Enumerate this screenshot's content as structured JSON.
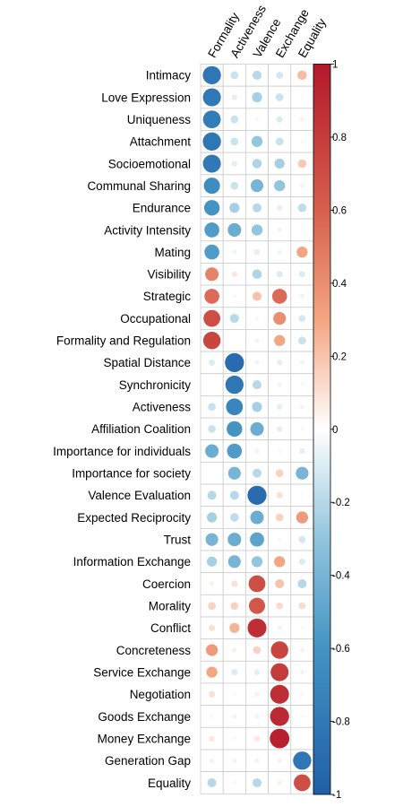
{
  "chart_data": {
    "type": "heatmap",
    "subtype": "correlation-circle",
    "title": "",
    "columns": [
      "Formality",
      "Activeness",
      "Valence",
      "Exchange",
      "Equality"
    ],
    "rows": [
      "Intimacy",
      "Love Expression",
      "Uniqueness",
      "Attachment",
      "Socioemotional",
      "Communal Sharing",
      "Endurance",
      "Activity Intensity",
      "Mating",
      "Visibility",
      "Strategic",
      "Occupational",
      "Formality and Regulation",
      "Spatial Distance",
      "Synchronicity",
      "Activeness",
      "Affiliation Coalition",
      "Importance for individuals",
      "Importance for society",
      "Valence Evaluation",
      "Expected Reciprocity",
      "Trust",
      "Information Exchange",
      "Coercion",
      "Morality",
      "Conflict",
      "Concreteness",
      "Service Exchange",
      "Negotiation",
      "Goods Exchange",
      "Money Exchange",
      "Generation Gap",
      "Equality"
    ],
    "values": [
      [
        -0.82,
        -0.15,
        -0.2,
        -0.12,
        0.22
      ],
      [
        -0.8,
        -0.08,
        -0.25,
        -0.15,
        0.02
      ],
      [
        -0.78,
        -0.15,
        -0.03,
        -0.1,
        0.05
      ],
      [
        -0.82,
        -0.15,
        -0.3,
        -0.15,
        0.03
      ],
      [
        -0.8,
        -0.08,
        -0.22,
        -0.25,
        0.18
      ],
      [
        -0.65,
        -0.15,
        -0.4,
        -0.3,
        -0.05
      ],
      [
        -0.6,
        -0.25,
        -0.2,
        -0.08,
        -0.18
      ],
      [
        -0.55,
        -0.45,
        -0.3,
        -0.05,
        0.02
      ],
      [
        -0.55,
        -0.05,
        -0.08,
        -0.05,
        0.3
      ],
      [
        0.45,
        0.08,
        -0.22,
        -0.1,
        -0.1
      ],
      [
        0.55,
        0.03,
        0.2,
        0.55,
        0.05
      ],
      [
        0.7,
        -0.2,
        0.03,
        0.4,
        -0.12
      ],
      [
        0.75,
        0.0,
        0.05,
        0.3,
        -0.15
      ],
      [
        -0.1,
        -0.9,
        -0.05,
        -0.08,
        -0.05
      ],
      [
        0.0,
        -0.82,
        -0.2,
        -0.05,
        -0.03
      ],
      [
        -0.15,
        -0.7,
        -0.25,
        -0.08,
        0.05
      ],
      [
        -0.15,
        -0.6,
        -0.45,
        -0.08,
        0.03
      ],
      [
        -0.45,
        -0.55,
        -0.05,
        -0.03,
        -0.08
      ],
      [
        0.0,
        -0.4,
        -0.2,
        0.15,
        -0.4
      ],
      [
        -0.2,
        -0.2,
        -0.9,
        0.1,
        0.02
      ],
      [
        -0.25,
        -0.18,
        -0.45,
        0.15,
        0.35
      ],
      [
        -0.4,
        -0.45,
        -0.5,
        -0.03,
        -0.12
      ],
      [
        -0.25,
        -0.4,
        -0.3,
        0.3,
        -0.1
      ],
      [
        0.05,
        0.1,
        0.7,
        0.2,
        -0.2
      ],
      [
        0.15,
        0.15,
        0.65,
        0.12,
        0.12
      ],
      [
        0.1,
        0.25,
        0.88,
        0.05,
        0.02
      ],
      [
        0.35,
        0.05,
        0.15,
        0.75,
        0.05
      ],
      [
        0.3,
        -0.1,
        -0.08,
        0.8,
        -0.05
      ],
      [
        0.1,
        0.03,
        0.05,
        0.88,
        0.03
      ],
      [
        0.03,
        -0.05,
        -0.05,
        0.9,
        0.02
      ],
      [
        0.08,
        0.03,
        0.08,
        0.95,
        0.0
      ],
      [
        0.05,
        0.05,
        0.05,
        0.05,
        -0.82
      ],
      [
        -0.2,
        0.03,
        -0.2,
        0.05,
        0.7
      ]
    ],
    "colorbar": {
      "range": [
        -1,
        1
      ],
      "ticks": [
        "1",
        "0.8",
        "0.6",
        "0.4",
        "0.2",
        "0",
        "-0.2",
        "-0.4",
        "-0.6",
        "-0.8",
        "-1"
      ],
      "tick_values": [
        1,
        0.8,
        0.6,
        0.4,
        0.2,
        0,
        -0.2,
        -0.4,
        -0.6,
        -0.8,
        -1
      ],
      "placement": "right"
    },
    "colors": {
      "negative_strong": "#1f5fa8",
      "negative_mid": "#4393c3",
      "negative_light": "#92c5de",
      "neutral": "#ffffff",
      "positive_light": "#f4a582",
      "positive_mid": "#d6604d",
      "positive_strong": "#b2182b",
      "grid": "#cccccc"
    },
    "grid": true
  }
}
